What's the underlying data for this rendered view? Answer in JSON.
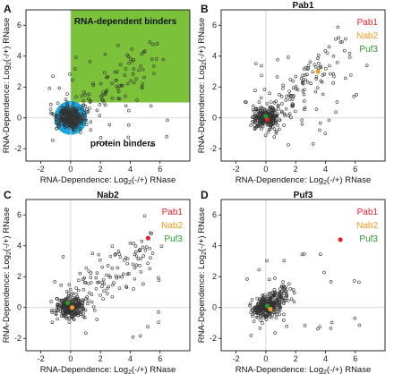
{
  "figure": {
    "colors": {
      "pab1": "#e8202a",
      "nab2": "#f39c1f",
      "puf3": "#2a9a2a",
      "rna_region": "#7cc13a",
      "protein_region": "#1aa7e0",
      "point": "#333333",
      "grid": "#cccccc"
    }
  },
  "chart_data": [
    {
      "panel": "A",
      "type": "scatter",
      "title": "",
      "xlabel_pre": "RNA-Dependence: Log",
      "xlabel_sub": "2",
      "xlabel_post": "(-/+) RNase",
      "ylabel_pre": "RNA-Dependence: Log",
      "ylabel_sub": "2",
      "ylabel_post": "(-/+) RNase",
      "xlim": [
        -3,
        8
      ],
      "ylim": [
        -2.8,
        7
      ],
      "xticks": [
        -2,
        0,
        2,
        4,
        6
      ],
      "yticks": [
        -2,
        0,
        2,
        4,
        6
      ],
      "regions": [
        {
          "name": "RNA-dependent binders",
          "type": "rect",
          "x0": 0,
          "y0": 1,
          "x1": 8,
          "y1": 7
        },
        {
          "name": "protein binders",
          "type": "circle",
          "cx": 0,
          "cy": 0,
          "r": 1.1
        }
      ],
      "highlights": [],
      "legend": []
    },
    {
      "panel": "B",
      "type": "scatter",
      "title": "Pab1",
      "xlabel_pre": "RNA-Dependence: Log",
      "xlabel_sub": "2",
      "xlabel_post": "(-/+) RNase",
      "ylabel_pre": "RNA-Dependence: Log",
      "ylabel_sub": "2",
      "ylabel_post": "(-/+) RNase",
      "xlim": [
        -3,
        8
      ],
      "ylim": [
        -2.8,
        7
      ],
      "xticks": [
        -2,
        0,
        2,
        4,
        6
      ],
      "yticks": [
        -2,
        0,
        2,
        4,
        6
      ],
      "highlights": [
        {
          "name": "Pab1",
          "x": 0.1,
          "y": -0.1
        },
        {
          "name": "Nab2",
          "x": 3.5,
          "y": 3.0
        },
        {
          "name": "Puf3",
          "x": 0.0,
          "y": 0.1
        }
      ],
      "legend": [
        "Pab1",
        "Nab2",
        "Puf3"
      ]
    },
    {
      "panel": "C",
      "type": "scatter",
      "title": "Nab2",
      "xlabel_pre": "RNA-Dependence: Log",
      "xlabel_sub": "2",
      "xlabel_post": "(-/+) RNase",
      "ylabel_pre": "RNA-Dependence: Log",
      "ylabel_sub": "2",
      "ylabel_post": "(-/+) RNase",
      "xlim": [
        -3,
        8
      ],
      "ylim": [
        -2.8,
        7
      ],
      "xticks": [
        -2,
        0,
        2,
        4,
        6
      ],
      "yticks": [
        -2,
        0,
        2,
        4,
        6
      ],
      "highlights": [
        {
          "name": "Pab1",
          "x": 5.2,
          "y": 4.5
        },
        {
          "name": "Nab2",
          "x": 0.1,
          "y": 0.0
        },
        {
          "name": "Puf3",
          "x": -0.2,
          "y": 0.3
        }
      ],
      "legend": [
        "Pab1",
        "Nab2",
        "Puf3"
      ]
    },
    {
      "panel": "D",
      "type": "scatter",
      "title": "Puf3",
      "xlabel_pre": "RNA-Dependence: Log",
      "xlabel_sub": "2",
      "xlabel_post": "(-/+) RNase",
      "ylabel_pre": "RNA-Dependence: Log",
      "ylabel_sub": "2",
      "ylabel_post": "(-/+) RNase",
      "xlim": [
        -3,
        8
      ],
      "ylim": [
        -2.8,
        7
      ],
      "xticks": [
        -2,
        0,
        2,
        4,
        6
      ],
      "yticks": [
        -2,
        0,
        2,
        4,
        6
      ],
      "highlights": [
        {
          "name": "Pab1",
          "x": 5.0,
          "y": 4.4
        },
        {
          "name": "Nab2",
          "x": 0.3,
          "y": -0.1
        },
        {
          "name": "Puf3",
          "x": 0.1,
          "y": 0.1
        }
      ],
      "legend": [
        "Pab1",
        "Nab2",
        "Puf3"
      ]
    }
  ]
}
